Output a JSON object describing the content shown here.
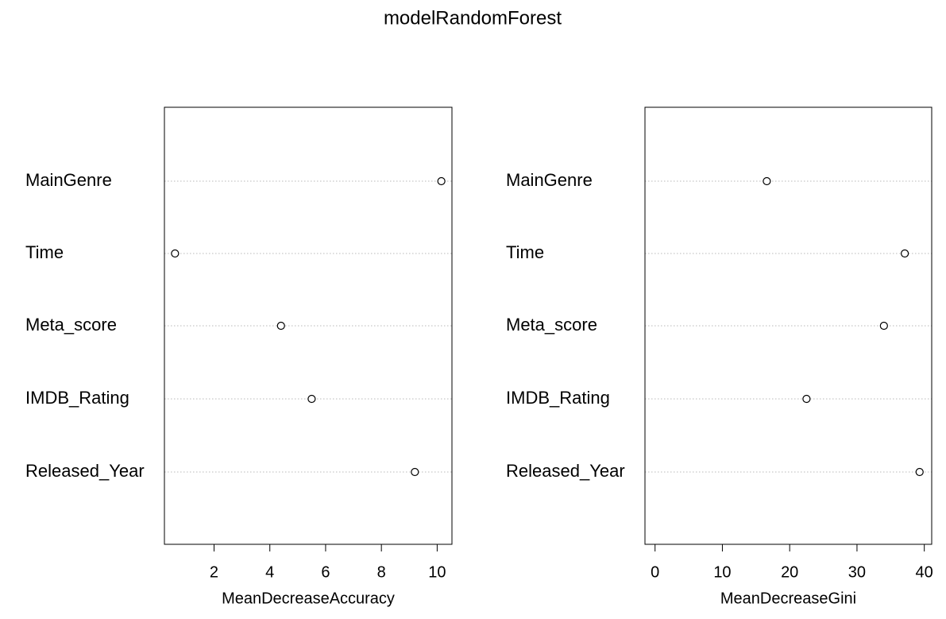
{
  "title": "modelRandomForest",
  "chart_data": [
    {
      "type": "scatter",
      "subtype": "dotchart",
      "categories": [
        "MainGenre",
        "Time",
        "Meta_score",
        "IMDB_Rating",
        "Released_Year"
      ],
      "values": [
        10.15,
        0.6,
        4.4,
        5.5,
        9.2
      ],
      "xlabel": "MeanDecreaseAccuracy",
      "ylabel": "",
      "xlim": [
        0.22,
        10.53
      ],
      "xticks": [
        2,
        4,
        6,
        8,
        10
      ],
      "grid": "horizontal dotted"
    },
    {
      "type": "scatter",
      "subtype": "dotchart",
      "categories": [
        "MainGenre",
        "Time",
        "Meta_score",
        "IMDB_Rating",
        "Released_Year"
      ],
      "values": [
        16.6,
        37.1,
        34.0,
        22.5,
        39.3
      ],
      "xlabel": "MeanDecreaseGini",
      "ylabel": "",
      "xlim": [
        -1.5,
        41.1
      ],
      "xticks": [
        0,
        10,
        20,
        30,
        40
      ],
      "grid": "horizontal dotted"
    }
  ]
}
